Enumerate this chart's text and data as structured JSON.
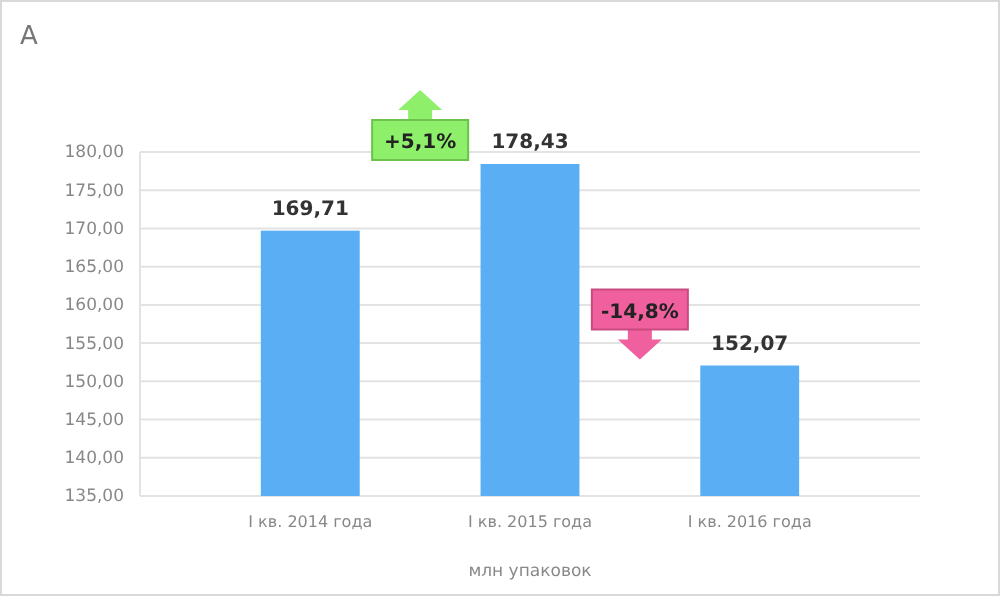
{
  "chart_data": {
    "type": "bar",
    "title": "А",
    "xlabel": "млн упаковок",
    "categories": [
      "I кв. 2014 года",
      "I кв. 2015 года",
      "I кв. 2016 года"
    ],
    "values": [
      169.71,
      178.43,
      152.07
    ],
    "color": "#5aaef4",
    "value_labels": [
      "169,71",
      "178,43",
      "152,07"
    ],
    "ylim": [
      135,
      180
    ],
    "yticks": [
      {
        "value": 135,
        "label": "135,00"
      },
      {
        "value": 140,
        "label": "140,00"
      },
      {
        "value": 145,
        "label": "145,00"
      },
      {
        "value": 150,
        "label": "150,00"
      },
      {
        "value": 155,
        "label": "155,00"
      },
      {
        "value": 160,
        "label": "160,00"
      },
      {
        "value": 165,
        "label": "165,00"
      },
      {
        "value": 170,
        "label": "170,00"
      },
      {
        "value": 175,
        "label": "175,00"
      },
      {
        "value": 180,
        "label": "180,00"
      }
    ],
    "grid": true,
    "annotations": [
      "+5,1%",
      "-14,8%"
    ]
  }
}
